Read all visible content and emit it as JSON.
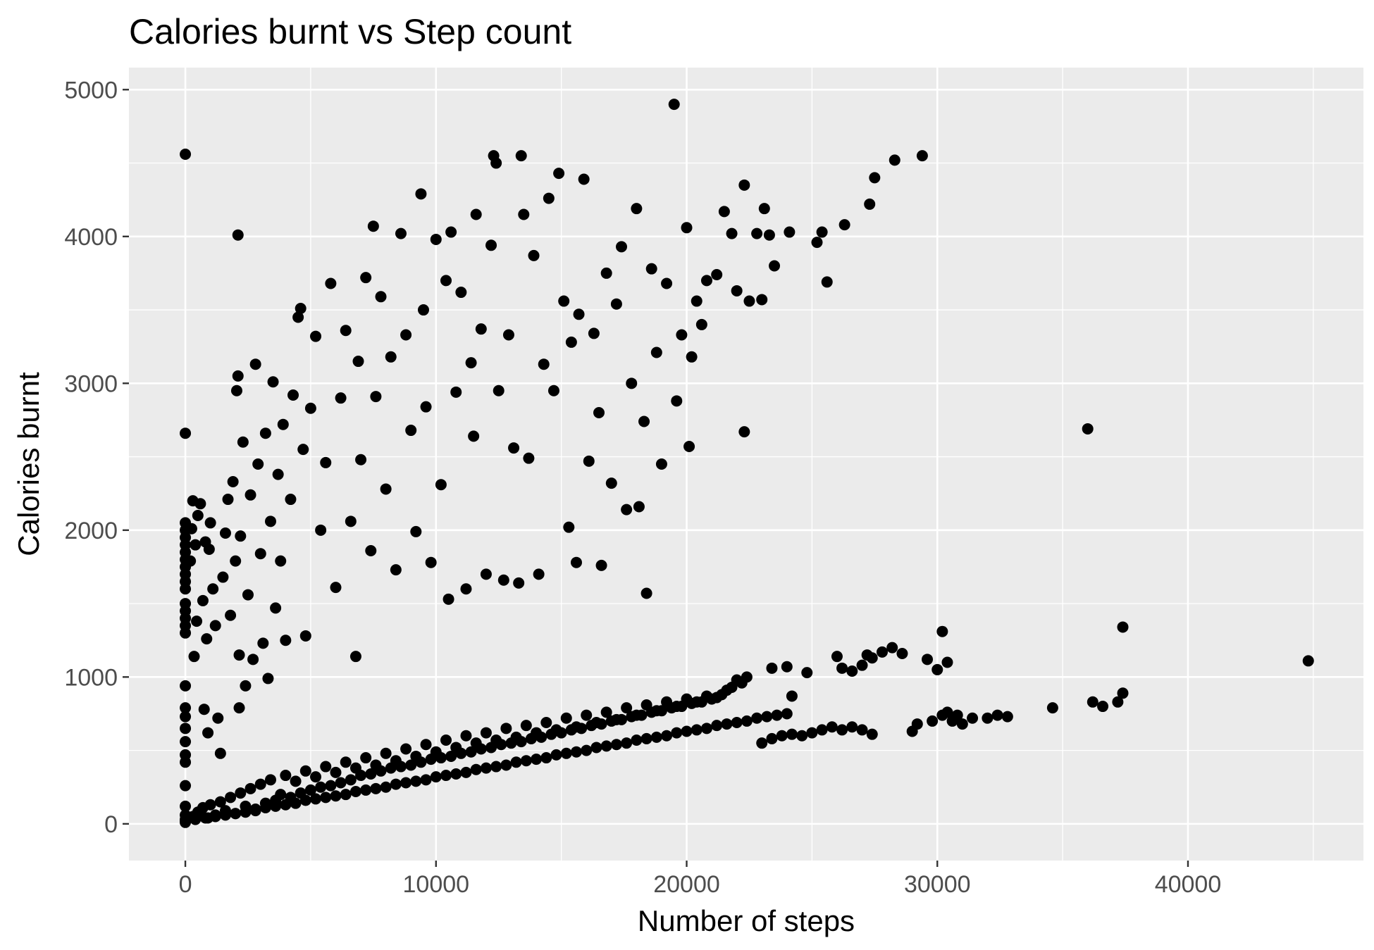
{
  "chart_data": {
    "type": "scatter",
    "title": "Calories burnt vs Step count",
    "xlabel": "Number of steps",
    "ylabel": "Calories burnt",
    "xlim": [
      -2250,
      47000
    ],
    "ylim": [
      -250,
      5150
    ],
    "x_ticks": [
      0,
      10000,
      20000,
      30000,
      40000
    ],
    "x_tick_labels": [
      "0",
      "10000",
      "20000",
      "30000",
      "40000"
    ],
    "y_ticks": [
      0,
      1000,
      2000,
      3000,
      4000,
      5000
    ],
    "y_tick_labels": [
      "0",
      "1000",
      "2000",
      "3000",
      "4000",
      "5000"
    ],
    "grid": true,
    "legend": "none",
    "point_color": "#000000",
    "panel_color": "#ebebeb",
    "grid_color": "#ffffff",
    "points": [
      [
        0,
        4560
      ],
      [
        0,
        2660
      ],
      [
        0,
        2050
      ],
      [
        0,
        2000
      ],
      [
        0,
        1950
      ],
      [
        0,
        1900
      ],
      [
        0,
        1850
      ],
      [
        0,
        1800
      ],
      [
        0,
        1750
      ],
      [
        0,
        1700
      ],
      [
        0,
        1650
      ],
      [
        0,
        1600
      ],
      [
        0,
        1500
      ],
      [
        0,
        1450
      ],
      [
        0,
        1400
      ],
      [
        0,
        1350
      ],
      [
        0,
        1300
      ],
      [
        0,
        940
      ],
      [
        0,
        790
      ],
      [
        0,
        730
      ],
      [
        0,
        650
      ],
      [
        0,
        560
      ],
      [
        0,
        470
      ],
      [
        0,
        420
      ],
      [
        0,
        260
      ],
      [
        0,
        120
      ],
      [
        0,
        60
      ],
      [
        0,
        30
      ],
      [
        0,
        20
      ],
      [
        0,
        10
      ],
      [
        200,
        1790
      ],
      [
        250,
        2010
      ],
      [
        300,
        2200
      ],
      [
        350,
        1140
      ],
      [
        400,
        1900
      ],
      [
        450,
        1380
      ],
      [
        500,
        2100
      ],
      [
        600,
        2180
      ],
      [
        700,
        1520
      ],
      [
        750,
        780
      ],
      [
        800,
        1920
      ],
      [
        850,
        1260
      ],
      [
        900,
        620
      ],
      [
        950,
        1870
      ],
      [
        1000,
        2050
      ],
      [
        1100,
        1600
      ],
      [
        1200,
        1350
      ],
      [
        1300,
        720
      ],
      [
        1400,
        480
      ],
      [
        1500,
        1680
      ],
      [
        1600,
        1980
      ],
      [
        1700,
        2210
      ],
      [
        1800,
        1420
      ],
      [
        1900,
        2330
      ],
      [
        2000,
        1790
      ],
      [
        2050,
        2950
      ],
      [
        2100,
        3050
      ],
      [
        2100,
        4010
      ],
      [
        2150,
        1150
      ],
      [
        2150,
        790
      ],
      [
        2200,
        1960
      ],
      [
        2300,
        2600
      ],
      [
        2400,
        940
      ],
      [
        2500,
        1560
      ],
      [
        2600,
        2240
      ],
      [
        2700,
        1120
      ],
      [
        2800,
        3130
      ],
      [
        2900,
        2450
      ],
      [
        3000,
        1840
      ],
      [
        3100,
        1230
      ],
      [
        3200,
        2660
      ],
      [
        3300,
        990
      ],
      [
        3400,
        2060
      ],
      [
        3500,
        3010
      ],
      [
        3600,
        1470
      ],
      [
        3700,
        2380
      ],
      [
        3800,
        1790
      ],
      [
        3900,
        2720
      ],
      [
        4000,
        1250
      ],
      [
        4200,
        2210
      ],
      [
        4300,
        2920
      ],
      [
        4500,
        3450
      ],
      [
        4600,
        3510
      ],
      [
        4700,
        2550
      ],
      [
        4800,
        1280
      ],
      [
        5000,
        2830
      ],
      [
        5200,
        3320
      ],
      [
        5400,
        2000
      ],
      [
        5600,
        2460
      ],
      [
        5800,
        3680
      ],
      [
        6000,
        1610
      ],
      [
        6200,
        2900
      ],
      [
        6400,
        3360
      ],
      [
        6600,
        2060
      ],
      [
        6800,
        1140
      ],
      [
        6900,
        3150
      ],
      [
        7000,
        2480
      ],
      [
        7200,
        3720
      ],
      [
        7400,
        1860
      ],
      [
        7500,
        4070
      ],
      [
        7600,
        2910
      ],
      [
        7800,
        3590
      ],
      [
        8000,
        2280
      ],
      [
        8200,
        3180
      ],
      [
        8400,
        1730
      ],
      [
        8600,
        4020
      ],
      [
        8800,
        3330
      ],
      [
        9000,
        2680
      ],
      [
        9200,
        1990
      ],
      [
        9400,
        4290
      ],
      [
        9500,
        3500
      ],
      [
        9600,
        2840
      ],
      [
        9800,
        1780
      ],
      [
        10000,
        3980
      ],
      [
        10200,
        2310
      ],
      [
        10400,
        3700
      ],
      [
        10500,
        1530
      ],
      [
        10600,
        4030
      ],
      [
        10800,
        2940
      ],
      [
        11000,
        3620
      ],
      [
        11200,
        1600
      ],
      [
        11400,
        3140
      ],
      [
        11500,
        2640
      ],
      [
        11600,
        4150
      ],
      [
        11800,
        3370
      ],
      [
        12000,
        1700
      ],
      [
        12200,
        3940
      ],
      [
        12300,
        4550
      ],
      [
        12400,
        4500
      ],
      [
        12500,
        2950
      ],
      [
        12700,
        1660
      ],
      [
        12900,
        3330
      ],
      [
        13100,
        2560
      ],
      [
        13300,
        1640
      ],
      [
        13400,
        4550
      ],
      [
        13500,
        4150
      ],
      [
        13700,
        2490
      ],
      [
        13900,
        3870
      ],
      [
        14100,
        1700
      ],
      [
        14300,
        3130
      ],
      [
        14500,
        4260
      ],
      [
        14700,
        2950
      ],
      [
        14900,
        4430
      ],
      [
        15100,
        3560
      ],
      [
        15300,
        2020
      ],
      [
        15400,
        3280
      ],
      [
        15600,
        1780
      ],
      [
        15700,
        3470
      ],
      [
        15900,
        4390
      ],
      [
        16100,
        2470
      ],
      [
        16300,
        3340
      ],
      [
        16500,
        2800
      ],
      [
        16600,
        1760
      ],
      [
        16800,
        3750
      ],
      [
        17000,
        2320
      ],
      [
        17200,
        3540
      ],
      [
        17400,
        3930
      ],
      [
        17600,
        2140
      ],
      [
        17800,
        3000
      ],
      [
        18000,
        4190
      ],
      [
        18100,
        2160
      ],
      [
        18300,
        2740
      ],
      [
        18400,
        1570
      ],
      [
        18600,
        3780
      ],
      [
        18800,
        3210
      ],
      [
        19000,
        2450
      ],
      [
        19200,
        3680
      ],
      [
        19500,
        4900
      ],
      [
        19600,
        2880
      ],
      [
        19800,
        3330
      ],
      [
        20000,
        4060
      ],
      [
        20100,
        2570
      ],
      [
        20200,
        3180
      ],
      [
        20400,
        3560
      ],
      [
        20600,
        3400
      ],
      [
        20800,
        3700
      ],
      [
        21200,
        3740
      ],
      [
        21500,
        4170
      ],
      [
        21800,
        4020
      ],
      [
        22000,
        3630
      ],
      [
        22300,
        4350
      ],
      [
        22300,
        2670
      ],
      [
        22500,
        3560
      ],
      [
        22800,
        4020
      ],
      [
        23000,
        3570
      ],
      [
        23100,
        4190
      ],
      [
        23300,
        4010
      ],
      [
        23500,
        3800
      ],
      [
        24100,
        4030
      ],
      [
        25200,
        3960
      ],
      [
        25400,
        4030
      ],
      [
        25600,
        3690
      ],
      [
        26300,
        4080
      ],
      [
        27300,
        4220
      ],
      [
        27500,
        4400
      ],
      [
        28300,
        4520
      ],
      [
        29400,
        4550
      ],
      [
        36000,
        2690
      ],
      [
        300,
        50
      ],
      [
        500,
        80
      ],
      [
        700,
        110
      ],
      [
        900,
        40
      ],
      [
        1000,
        130
      ],
      [
        1200,
        60
      ],
      [
        1400,
        150
      ],
      [
        1600,
        90
      ],
      [
        1800,
        180
      ],
      [
        2000,
        70
      ],
      [
        2200,
        210
      ],
      [
        2400,
        120
      ],
      [
        2600,
        240
      ],
      [
        2800,
        100
      ],
      [
        3000,
        270
      ],
      [
        3200,
        140
      ],
      [
        3400,
        300
      ],
      [
        3600,
        160
      ],
      [
        3800,
        200
      ],
      [
        4000,
        330
      ],
      [
        4200,
        180
      ],
      [
        4400,
        290
      ],
      [
        4600,
        210
      ],
      [
        4800,
        360
      ],
      [
        5000,
        230
      ],
      [
        5200,
        320
      ],
      [
        5400,
        250
      ],
      [
        5600,
        390
      ],
      [
        5800,
        260
      ],
      [
        6000,
        350
      ],
      [
        6200,
        280
      ],
      [
        6400,
        420
      ],
      [
        6600,
        300
      ],
      [
        6800,
        380
      ],
      [
        7000,
        330
      ],
      [
        7200,
        450
      ],
      [
        7400,
        340
      ],
      [
        7600,
        400
      ],
      [
        7800,
        360
      ],
      [
        8000,
        480
      ],
      [
        8200,
        380
      ],
      [
        8400,
        430
      ],
      [
        8600,
        390
      ],
      [
        8800,
        510
      ],
      [
        9000,
        400
      ],
      [
        9200,
        460
      ],
      [
        9400,
        420
      ],
      [
        9600,
        540
      ],
      [
        9800,
        440
      ],
      [
        10000,
        490
      ],
      [
        10200,
        450
      ],
      [
        10400,
        570
      ],
      [
        10600,
        460
      ],
      [
        10800,
        520
      ],
      [
        11000,
        480
      ],
      [
        11200,
        600
      ],
      [
        11400,
        490
      ],
      [
        11600,
        550
      ],
      [
        11800,
        510
      ],
      [
        12000,
        620
      ],
      [
        12200,
        520
      ],
      [
        12400,
        570
      ],
      [
        12600,
        540
      ],
      [
        12800,
        650
      ],
      [
        13000,
        550
      ],
      [
        13200,
        590
      ],
      [
        13400,
        560
      ],
      [
        13600,
        670
      ],
      [
        13800,
        580
      ],
      [
        14000,
        620
      ],
      [
        14200,
        590
      ],
      [
        14400,
        690
      ],
      [
        14600,
        610
      ],
      [
        14800,
        640
      ],
      [
        15000,
        620
      ],
      [
        15200,
        720
      ],
      [
        15400,
        640
      ],
      [
        15600,
        660
      ],
      [
        15800,
        650
      ],
      [
        16000,
        740
      ],
      [
        16200,
        670
      ],
      [
        16400,
        690
      ],
      [
        16600,
        680
      ],
      [
        16800,
        760
      ],
      [
        17000,
        700
      ],
      [
        17200,
        710
      ],
      [
        17400,
        710
      ],
      [
        17600,
        790
      ],
      [
        17800,
        730
      ],
      [
        18000,
        740
      ],
      [
        18200,
        740
      ],
      [
        18400,
        810
      ],
      [
        18600,
        760
      ],
      [
        18800,
        770
      ],
      [
        19000,
        770
      ],
      [
        19200,
        830
      ],
      [
        19400,
        790
      ],
      [
        19600,
        800
      ],
      [
        19800,
        800
      ],
      [
        20000,
        850
      ],
      [
        20200,
        820
      ],
      [
        20400,
        830
      ],
      [
        20600,
        830
      ],
      [
        20800,
        870
      ],
      [
        21000,
        850
      ],
      [
        21200,
        860
      ],
      [
        21400,
        880
      ],
      [
        21600,
        910
      ],
      [
        21800,
        930
      ],
      [
        22000,
        980
      ],
      [
        22200,
        960
      ],
      [
        22400,
        1000
      ],
      [
        400,
        30
      ],
      [
        800,
        40
      ],
      [
        1200,
        50
      ],
      [
        1600,
        60
      ],
      [
        2000,
        70
      ],
      [
        2400,
        80
      ],
      [
        2800,
        90
      ],
      [
        3200,
        110
      ],
      [
        3600,
        120
      ],
      [
        4000,
        130
      ],
      [
        4400,
        140
      ],
      [
        4800,
        160
      ],
      [
        5200,
        170
      ],
      [
        5600,
        180
      ],
      [
        6000,
        190
      ],
      [
        6400,
        200
      ],
      [
        6800,
        220
      ],
      [
        7200,
        230
      ],
      [
        7600,
        240
      ],
      [
        8000,
        250
      ],
      [
        8400,
        270
      ],
      [
        8800,
        280
      ],
      [
        9200,
        290
      ],
      [
        9600,
        300
      ],
      [
        10000,
        320
      ],
      [
        10400,
        330
      ],
      [
        10800,
        340
      ],
      [
        11200,
        350
      ],
      [
        11600,
        370
      ],
      [
        12000,
        380
      ],
      [
        12400,
        390
      ],
      [
        12800,
        400
      ],
      [
        13200,
        420
      ],
      [
        13600,
        430
      ],
      [
        14000,
        440
      ],
      [
        14400,
        450
      ],
      [
        14800,
        470
      ],
      [
        15200,
        480
      ],
      [
        15600,
        490
      ],
      [
        16000,
        500
      ],
      [
        16400,
        520
      ],
      [
        16800,
        530
      ],
      [
        17200,
        540
      ],
      [
        17600,
        550
      ],
      [
        18000,
        570
      ],
      [
        18400,
        580
      ],
      [
        18800,
        590
      ],
      [
        19200,
        600
      ],
      [
        19600,
        620
      ],
      [
        20000,
        630
      ],
      [
        20400,
        640
      ],
      [
        20800,
        650
      ],
      [
        21200,
        670
      ],
      [
        21600,
        680
      ],
      [
        22000,
        690
      ],
      [
        22400,
        700
      ],
      [
        22800,
        720
      ],
      [
        23200,
        730
      ],
      [
        23600,
        740
      ],
      [
        24000,
        750
      ],
      [
        23000,
        550
      ],
      [
        23400,
        580
      ],
      [
        23800,
        600
      ],
      [
        24200,
        610
      ],
      [
        24600,
        600
      ],
      [
        25000,
        620
      ],
      [
        25400,
        640
      ],
      [
        25800,
        660
      ],
      [
        26200,
        640
      ],
      [
        26600,
        660
      ],
      [
        27000,
        640
      ],
      [
        27400,
        610
      ],
      [
        29000,
        630
      ],
      [
        29200,
        680
      ],
      [
        29800,
        700
      ],
      [
        30200,
        740
      ],
      [
        30400,
        760
      ],
      [
        30600,
        700
      ],
      [
        30800,
        740
      ],
      [
        31000,
        680
      ],
      [
        31400,
        720
      ],
      [
        32000,
        720
      ],
      [
        32400,
        740
      ],
      [
        32800,
        730
      ],
      [
        34600,
        790
      ],
      [
        36200,
        830
      ],
      [
        36600,
        800
      ],
      [
        37200,
        830
      ],
      [
        37400,
        890
      ],
      [
        23400,
        1060
      ],
      [
        24000,
        1070
      ],
      [
        24200,
        870
      ],
      [
        24800,
        1030
      ],
      [
        26000,
        1140
      ],
      [
        26200,
        1060
      ],
      [
        26600,
        1040
      ],
      [
        27000,
        1080
      ],
      [
        27200,
        1150
      ],
      [
        27400,
        1130
      ],
      [
        27800,
        1170
      ],
      [
        28200,
        1200
      ],
      [
        28600,
        1160
      ],
      [
        29600,
        1120
      ],
      [
        30000,
        1050
      ],
      [
        30200,
        1310
      ],
      [
        30400,
        1100
      ],
      [
        37400,
        1340
      ],
      [
        44800,
        1110
      ]
    ]
  }
}
